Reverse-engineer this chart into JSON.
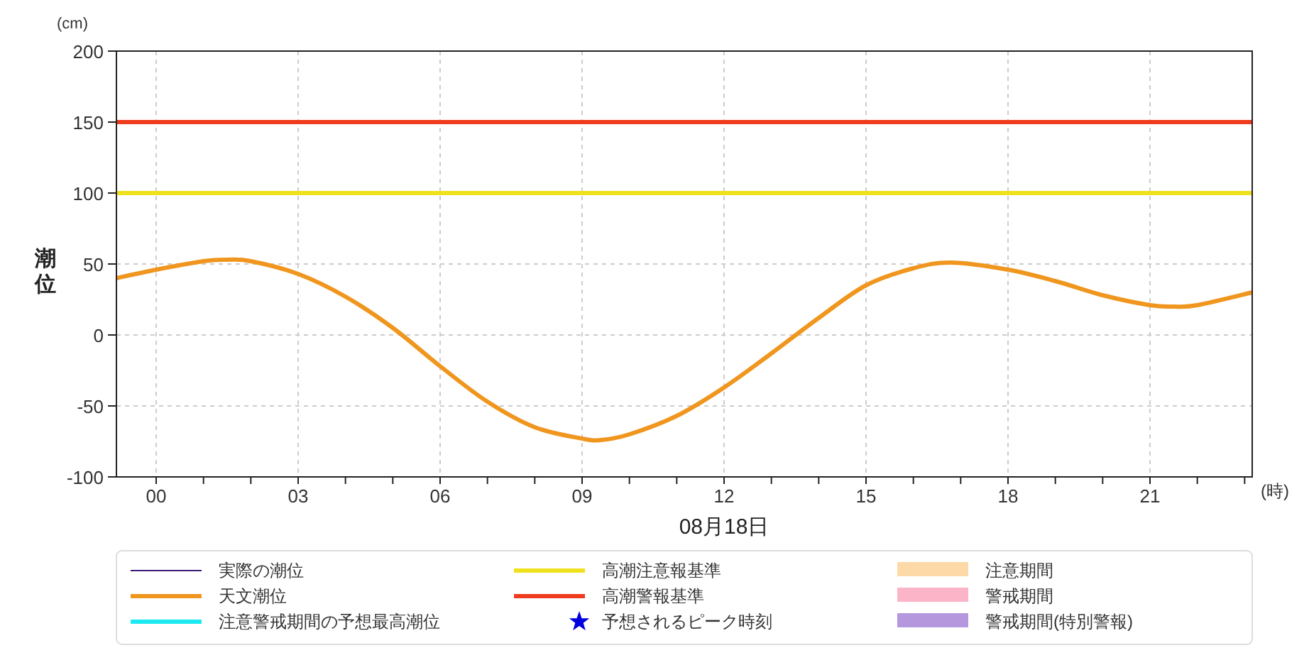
{
  "chart_data": {
    "type": "line",
    "xlabel": "(時)",
    "ylabel": "潮位",
    "annotations": [
      "(cm)",
      "08月18日"
    ],
    "xlim": [
      -0.84,
      23.16
    ],
    "ylim": [
      -100,
      200
    ],
    "xticks": [
      {
        "value": 0,
        "label": "00"
      },
      {
        "value": 1,
        "label": null
      },
      {
        "value": 2,
        "label": null
      },
      {
        "value": 3,
        "label": "03"
      },
      {
        "value": 4,
        "label": null
      },
      {
        "value": 5,
        "label": null
      },
      {
        "value": 6,
        "label": "06"
      },
      {
        "value": 7,
        "label": null
      },
      {
        "value": 8,
        "label": null
      },
      {
        "value": 9,
        "label": "09"
      },
      {
        "value": 10,
        "label": null
      },
      {
        "value": 11,
        "label": null
      },
      {
        "value": 12,
        "label": "12"
      },
      {
        "value": 13,
        "label": null
      },
      {
        "value": 14,
        "label": null
      },
      {
        "value": 15,
        "label": "15"
      },
      {
        "value": 16,
        "label": null
      },
      {
        "value": 17,
        "label": null
      },
      {
        "value": 18,
        "label": "18"
      },
      {
        "value": 19,
        "label": null
      },
      {
        "value": 20,
        "label": null
      },
      {
        "value": 21,
        "label": "21"
      },
      {
        "value": 22,
        "label": null
      },
      {
        "value": 23,
        "label": null
      }
    ],
    "yticks": [
      -100,
      -50,
      0,
      50,
      100,
      150,
      200
    ],
    "grid": true,
    "legend": "bottom",
    "series": [
      {
        "name": "実際の潮位",
        "color": "#3c1a78"
      },
      {
        "name": "天文潮位",
        "color": "#f0961e",
        "x": [
          -0.84,
          0,
          1,
          1.5,
          2,
          3,
          4,
          5,
          6,
          7,
          8,
          9,
          9.4,
          10,
          11,
          12,
          13,
          14,
          15,
          16,
          16.8,
          18,
          19,
          20,
          21,
          21.5,
          22,
          23.16
        ],
        "values": [
          40,
          46,
          52,
          53,
          52,
          43,
          27,
          5,
          -22,
          -47,
          -65,
          -73,
          -74,
          -70,
          -57,
          -37,
          -13,
          12,
          35,
          47,
          51,
          46,
          38,
          28,
          21,
          20,
          21,
          30
        ]
      },
      {
        "name": "注意警戒期間の予想最高潮位",
        "color": "#1de9f0"
      },
      {
        "name": "予想されるピーク時刻",
        "type": "scatter",
        "marker": "star",
        "color": "#0000e0"
      },
      {
        "name": "注意期間",
        "type": "area",
        "color": "#fdd9a8"
      },
      {
        "name": "警戒期間",
        "type": "area",
        "color": "#fbb4c8"
      },
      {
        "name": "警戒期間(特別警報)",
        "type": "area",
        "color": "#b497dc"
      }
    ],
    "ref_lines": [
      {
        "axis": "y",
        "value": 100,
        "label": "高潮注意報基準",
        "color": "#f0e11e"
      },
      {
        "axis": "y",
        "value": 150,
        "label": "高潮警報基準",
        "color": "#f03c1e"
      }
    ]
  }
}
